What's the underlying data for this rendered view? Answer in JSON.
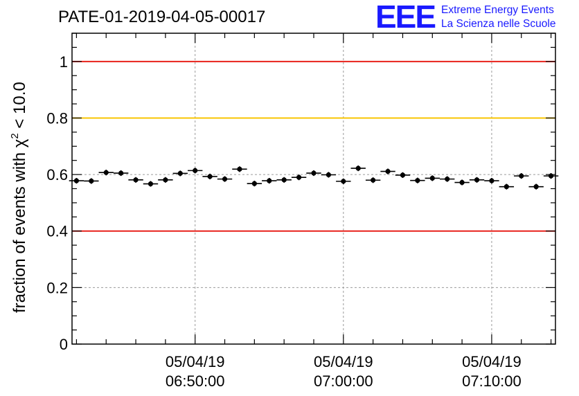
{
  "title": "PATE-01-2019-04-05-00017",
  "logo": {
    "mark": "EEE",
    "line1": "Extreme Energy Events",
    "line2": "La Scienza nelle Scuole",
    "color": "#1a1aff"
  },
  "chart_data": {
    "type": "scatter",
    "title": "PATE-01-2019-04-05-00017",
    "ylabel_prefix": "fraction of events with χ",
    "ylabel_sup": "2",
    "ylabel_suffix": " < 10.0",
    "ylim": [
      0,
      1.1
    ],
    "yticks": [
      0,
      0.2,
      0.4,
      0.6,
      0.8,
      1
    ],
    "ytick_labels": [
      "0",
      "0.2",
      "0.4",
      "0.6",
      "0.8",
      "1"
    ],
    "xlim_minutes": [
      -8.3,
      24.3
    ],
    "xaxis_origin": "05/04/19 06:50:00",
    "xtick_minutes": [
      0,
      10,
      20
    ],
    "xtick_dates": [
      "05/04/19",
      "05/04/19",
      "05/04/19"
    ],
    "xtick_times": [
      "06:50:00",
      "07:00:00",
      "07:10:00"
    ],
    "grid": true,
    "hlines": [
      {
        "y": 1.0,
        "color": "#e8201a"
      },
      {
        "y": 0.8,
        "color": "#f8c400"
      },
      {
        "y": 0.4,
        "color": "#e8201a"
      }
    ],
    "bin_width_minutes": 1,
    "x_minutes": [
      -8,
      -7,
      -6,
      -5,
      -4,
      -3,
      -2,
      -1,
      0,
      1,
      2,
      3,
      4,
      5,
      6,
      7,
      8,
      9,
      10,
      11,
      12,
      13,
      14,
      15,
      16,
      17,
      18,
      19,
      20,
      21,
      22,
      23,
      24
    ],
    "values": [
      0.578,
      0.577,
      0.607,
      0.605,
      0.581,
      0.567,
      0.581,
      0.604,
      0.614,
      0.593,
      0.584,
      0.619,
      0.568,
      0.578,
      0.581,
      0.59,
      0.605,
      0.599,
      0.576,
      0.622,
      0.58,
      0.611,
      0.598,
      0.579,
      0.587,
      0.584,
      0.572,
      0.581,
      0.578,
      0.557,
      0.595,
      0.557,
      0.595
    ],
    "errors": [
      0.01,
      0.01,
      0.01,
      0.01,
      0.01,
      0.01,
      0.01,
      0.01,
      0.01,
      0.01,
      0.01,
      0.01,
      0.01,
      0.01,
      0.01,
      0.01,
      0.01,
      0.01,
      0.01,
      0.01,
      0.01,
      0.01,
      0.01,
      0.01,
      0.01,
      0.01,
      0.01,
      0.01,
      0.01,
      0.01,
      0.01,
      0.01,
      0.01
    ]
  }
}
